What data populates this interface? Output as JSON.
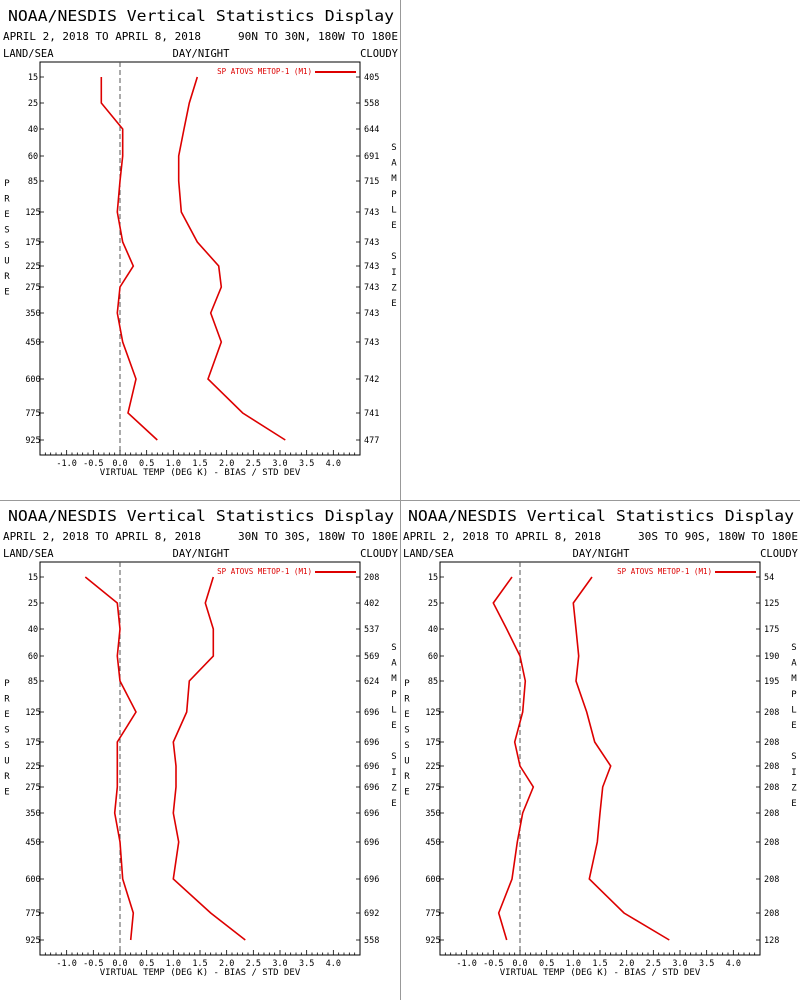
{
  "colors": {
    "series": "#dd0000",
    "axis": "#000000",
    "zero_line": "#555555"
  },
  "chart_data": [
    {
      "type": "line",
      "title": "NOAA/NESDIS Vertical Statistics Display",
      "date_range": "APRIL 2, 2018 TO APRIL 8, 2018",
      "region": "90N TO 30N, 180W TO 180E",
      "corner_labels": {
        "left": "LAND/SEA",
        "center": "DAY/NIGHT",
        "right": "CLOUDY"
      },
      "ylabel": "PRESSURE",
      "y2label": "SAMPLE SIZE",
      "xlabel": "VIRTUAL TEMP (DEG K) - BIAS / STD DEV",
      "xlim": [
        -1.5,
        4.5
      ],
      "x_ticks": [
        "-1.0",
        "-0.5",
        "0.0",
        "0.5",
        "1.0",
        "1.5",
        "2.0",
        "2.5",
        "3.0",
        "3.5",
        "4.0"
      ],
      "legend": "SP ATOVS METOP-1 (M1)",
      "pressure_levels": [
        "15",
        "25",
        "40",
        "60",
        "85",
        "125",
        "175",
        "225",
        "275",
        "350",
        "450",
        "600",
        "775",
        "925"
      ],
      "sample_size": [
        "405",
        "558",
        "644",
        "691",
        "715",
        "743",
        "743",
        "743",
        "743",
        "743",
        "743",
        "742",
        "741",
        "477"
      ],
      "series": [
        {
          "name": "BIAS",
          "values": [
            -0.35,
            -0.35,
            0.05,
            0.05,
            0.0,
            -0.05,
            0.05,
            0.25,
            0.0,
            -0.05,
            0.05,
            0.3,
            0.15,
            0.7
          ]
        },
        {
          "name": "STD DEV",
          "values": [
            1.45,
            1.3,
            1.2,
            1.1,
            1.1,
            1.15,
            1.45,
            1.85,
            1.9,
            1.7,
            1.9,
            1.65,
            2.3,
            3.1
          ]
        }
      ]
    },
    {
      "type": "line",
      "title": "NOAA/NESDIS Vertical Statistics Display",
      "date_range": "APRIL 2, 2018 TO APRIL 8, 2018",
      "region": "30N TO 30S, 180W TO 180E",
      "corner_labels": {
        "left": "LAND/SEA",
        "center": "DAY/NIGHT",
        "right": "CLOUDY"
      },
      "ylabel": "PRESSURE",
      "y2label": "SAMPLE SIZE",
      "xlabel": "VIRTUAL TEMP (DEG K) - BIAS / STD DEV",
      "xlim": [
        -1.5,
        4.5
      ],
      "x_ticks": [
        "-1.0",
        "-0.5",
        "0.0",
        "0.5",
        "1.0",
        "1.5",
        "2.0",
        "2.5",
        "3.0",
        "3.5",
        "4.0"
      ],
      "legend": "SP ATOVS METOP-1 (M1)",
      "pressure_levels": [
        "15",
        "25",
        "40",
        "60",
        "85",
        "125",
        "175",
        "225",
        "275",
        "350",
        "450",
        "600",
        "775",
        "925"
      ],
      "sample_size": [
        "208",
        "402",
        "537",
        "569",
        "624",
        "696",
        "696",
        "696",
        "696",
        "696",
        "696",
        "696",
        "692",
        "558"
      ],
      "series": [
        {
          "name": "BIAS",
          "values": [
            -0.65,
            -0.05,
            0.0,
            -0.05,
            0.0,
            0.3,
            -0.05,
            -0.05,
            -0.05,
            -0.1,
            0.0,
            0.05,
            0.25,
            0.2
          ]
        },
        {
          "name": "STD DEV",
          "values": [
            1.75,
            1.6,
            1.75,
            1.75,
            1.3,
            1.25,
            1.0,
            1.05,
            1.05,
            1.0,
            1.1,
            1.0,
            1.7,
            2.35
          ]
        }
      ]
    },
    {
      "type": "line",
      "title": "NOAA/NESDIS Vertical Statistics Display",
      "date_range": "APRIL 2, 2018 TO APRIL 8, 2018",
      "region": "30S TO 90S, 180W TO 180E",
      "corner_labels": {
        "left": "LAND/SEA",
        "center": "DAY/NIGHT",
        "right": "CLOUDY"
      },
      "ylabel": "PRESSURE",
      "y2label": "SAMPLE SIZE",
      "xlabel": "VIRTUAL TEMP (DEG K) - BIAS / STD DEV",
      "xlim": [
        -1.5,
        4.5
      ],
      "x_ticks": [
        "-1.0",
        "-0.5",
        "0.0",
        "0.5",
        "1.0",
        "1.5",
        "2.0",
        "2.5",
        "3.0",
        "3.5",
        "4.0"
      ],
      "legend": "SP ATOVS METOP-1 (M1)",
      "pressure_levels": [
        "15",
        "25",
        "40",
        "60",
        "85",
        "125",
        "175",
        "225",
        "275",
        "350",
        "450",
        "600",
        "775",
        "925"
      ],
      "sample_size": [
        "54",
        "125",
        "175",
        "190",
        "195",
        "208",
        "208",
        "208",
        "208",
        "208",
        "208",
        "208",
        "208",
        "128"
      ],
      "series": [
        {
          "name": "BIAS",
          "values": [
            -0.15,
            -0.5,
            -0.25,
            0.0,
            0.1,
            0.05,
            -0.1,
            0.0,
            0.25,
            0.05,
            -0.05,
            -0.15,
            -0.4,
            -0.25
          ]
        },
        {
          "name": "STD DEV",
          "values": [
            1.35,
            1.0,
            1.05,
            1.1,
            1.05,
            1.25,
            1.4,
            1.7,
            1.55,
            1.5,
            1.45,
            1.3,
            1.95,
            2.8
          ]
        }
      ]
    }
  ]
}
